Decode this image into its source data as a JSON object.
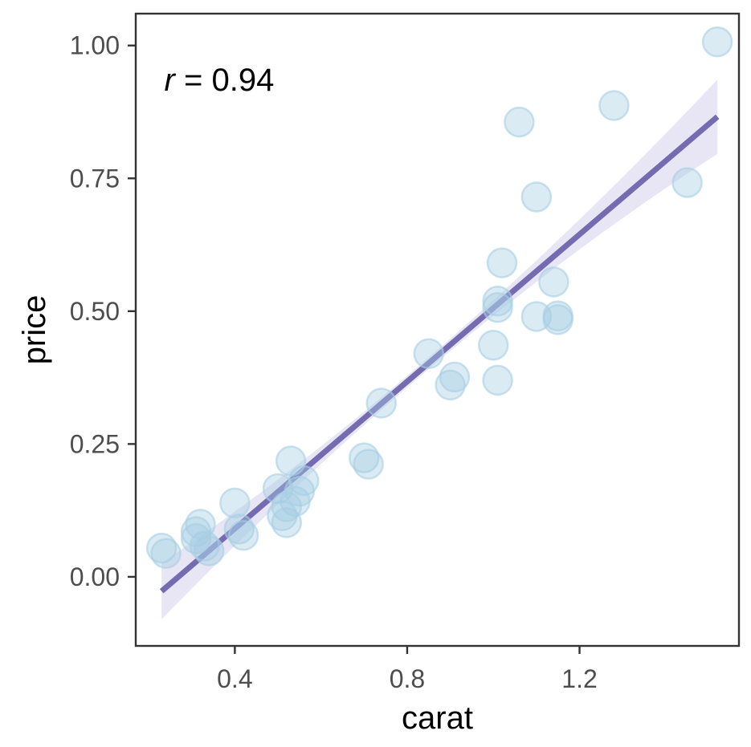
{
  "chart_data": {
    "type": "scatter",
    "title": "",
    "xlabel": "carat",
    "ylabel": "price",
    "xlim": [
      0.17,
      1.57
    ],
    "ylim": [
      -0.13,
      1.06
    ],
    "x_ticks": [
      0.4,
      0.8,
      1.2
    ],
    "x_tick_labels": [
      "0.4",
      "0.8",
      "1.2"
    ],
    "y_ticks": [
      0.0,
      0.25,
      0.5,
      0.75,
      1.0
    ],
    "y_tick_labels": [
      "0.00",
      "0.25",
      "0.50",
      "0.75",
      "1.00"
    ],
    "grid": false,
    "annotation": {
      "italic": "r",
      "rest": " = 0.94",
      "x": 0.24,
      "y": 0.96
    },
    "series": [
      {
        "name": "points",
        "x": [
          0.23,
          0.24,
          0.31,
          0.31,
          0.32,
          0.33,
          0.34,
          0.4,
          0.41,
          0.42,
          0.5,
          0.51,
          0.52,
          0.52,
          0.53,
          0.54,
          0.55,
          0.56,
          0.7,
          0.71,
          0.74,
          0.85,
          0.9,
          0.91,
          1.0,
          1.01,
          1.01,
          1.01,
          1.02,
          1.06,
          1.1,
          1.1,
          1.14,
          1.15,
          1.15,
          1.28,
          1.45,
          1.52
        ],
        "y": [
          0.054,
          0.044,
          0.085,
          0.072,
          0.099,
          0.058,
          0.049,
          0.139,
          0.09,
          0.078,
          0.166,
          0.115,
          0.102,
          0.132,
          0.218,
          0.142,
          0.161,
          0.181,
          0.224,
          0.212,
          0.327,
          0.42,
          0.361,
          0.376,
          0.436,
          0.37,
          0.519,
          0.507,
          0.591,
          0.856,
          0.715,
          0.49,
          0.555,
          0.491,
          0.484,
          0.887,
          0.742,
          1.007
        ],
        "color": "#a6cee3"
      }
    ],
    "fit_line": {
      "type": "linear",
      "x_range": [
        0.23,
        1.52
      ],
      "y_at_start": -0.027,
      "y_at_end": 0.866,
      "ci_at_start": [
        -0.08,
        0.026
      ],
      "ci_mid": 0.66,
      "ci_mid_half": 0.014,
      "ci_at_end": [
        0.8,
        0.94
      ],
      "color": "#756bb1",
      "band_color": "#d9d6ec"
    }
  }
}
